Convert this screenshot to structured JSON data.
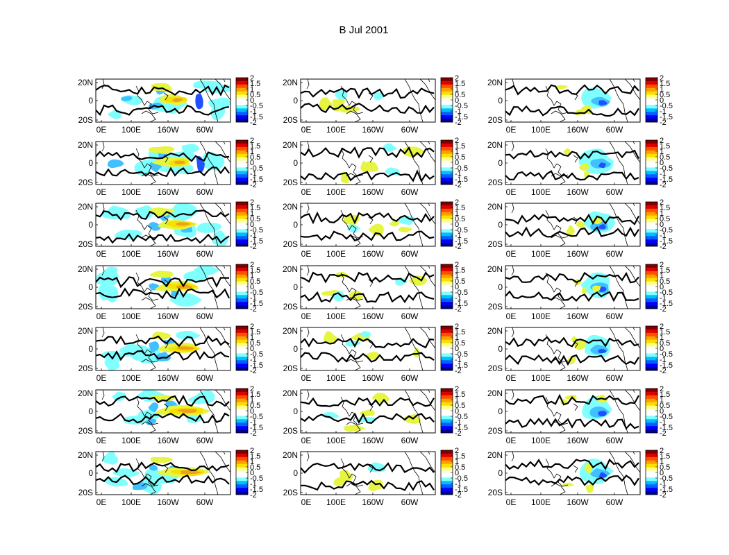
{
  "chart_data": {
    "type": "heatmap",
    "title": "B Jul 2001",
    "layout": {
      "rows": 7,
      "cols": 3
    },
    "xticks": [
      "0E",
      "100E",
      "160W",
      "60W"
    ],
    "yticks": [
      "20N",
      "0",
      "20S"
    ],
    "colorbar": {
      "ticks": [
        "2",
        "1.5",
        "1",
        "0.5",
        "0",
        "-0.5",
        "-1",
        "-1.5",
        "-2"
      ],
      "range": [
        -2,
        2
      ],
      "colors": [
        "#00008f",
        "#0000ff",
        "#0060ff",
        "#00bfff",
        "#80ffff",
        "#ffffff",
        "#ffffff",
        "#ffff80",
        "#ffdf00",
        "#ff9f00",
        "#ff5000",
        "#df0000",
        "#800000"
      ]
    },
    "fill_colors": {
      "pos_weak": "#e6f542",
      "pos_mid": "#f5e000",
      "pos_strong": "#f0a020",
      "neg_weak": "#80ffff",
      "neg_mid": "#40c0ff",
      "neg_strong": "#2050ff",
      "contour": "#000000"
    },
    "panel_ids": [
      "r1c1",
      "r1c2",
      "r1c3",
      "r2c1",
      "r2c2",
      "r2c3",
      "r3c1",
      "r3c2",
      "r3c3",
      "r4c1",
      "r4c2",
      "r4c3",
      "r5c1",
      "r5c2",
      "r5c3",
      "r6c1",
      "r6c2",
      "r6c3",
      "r7c1",
      "r7c2",
      "r7c3"
    ]
  }
}
